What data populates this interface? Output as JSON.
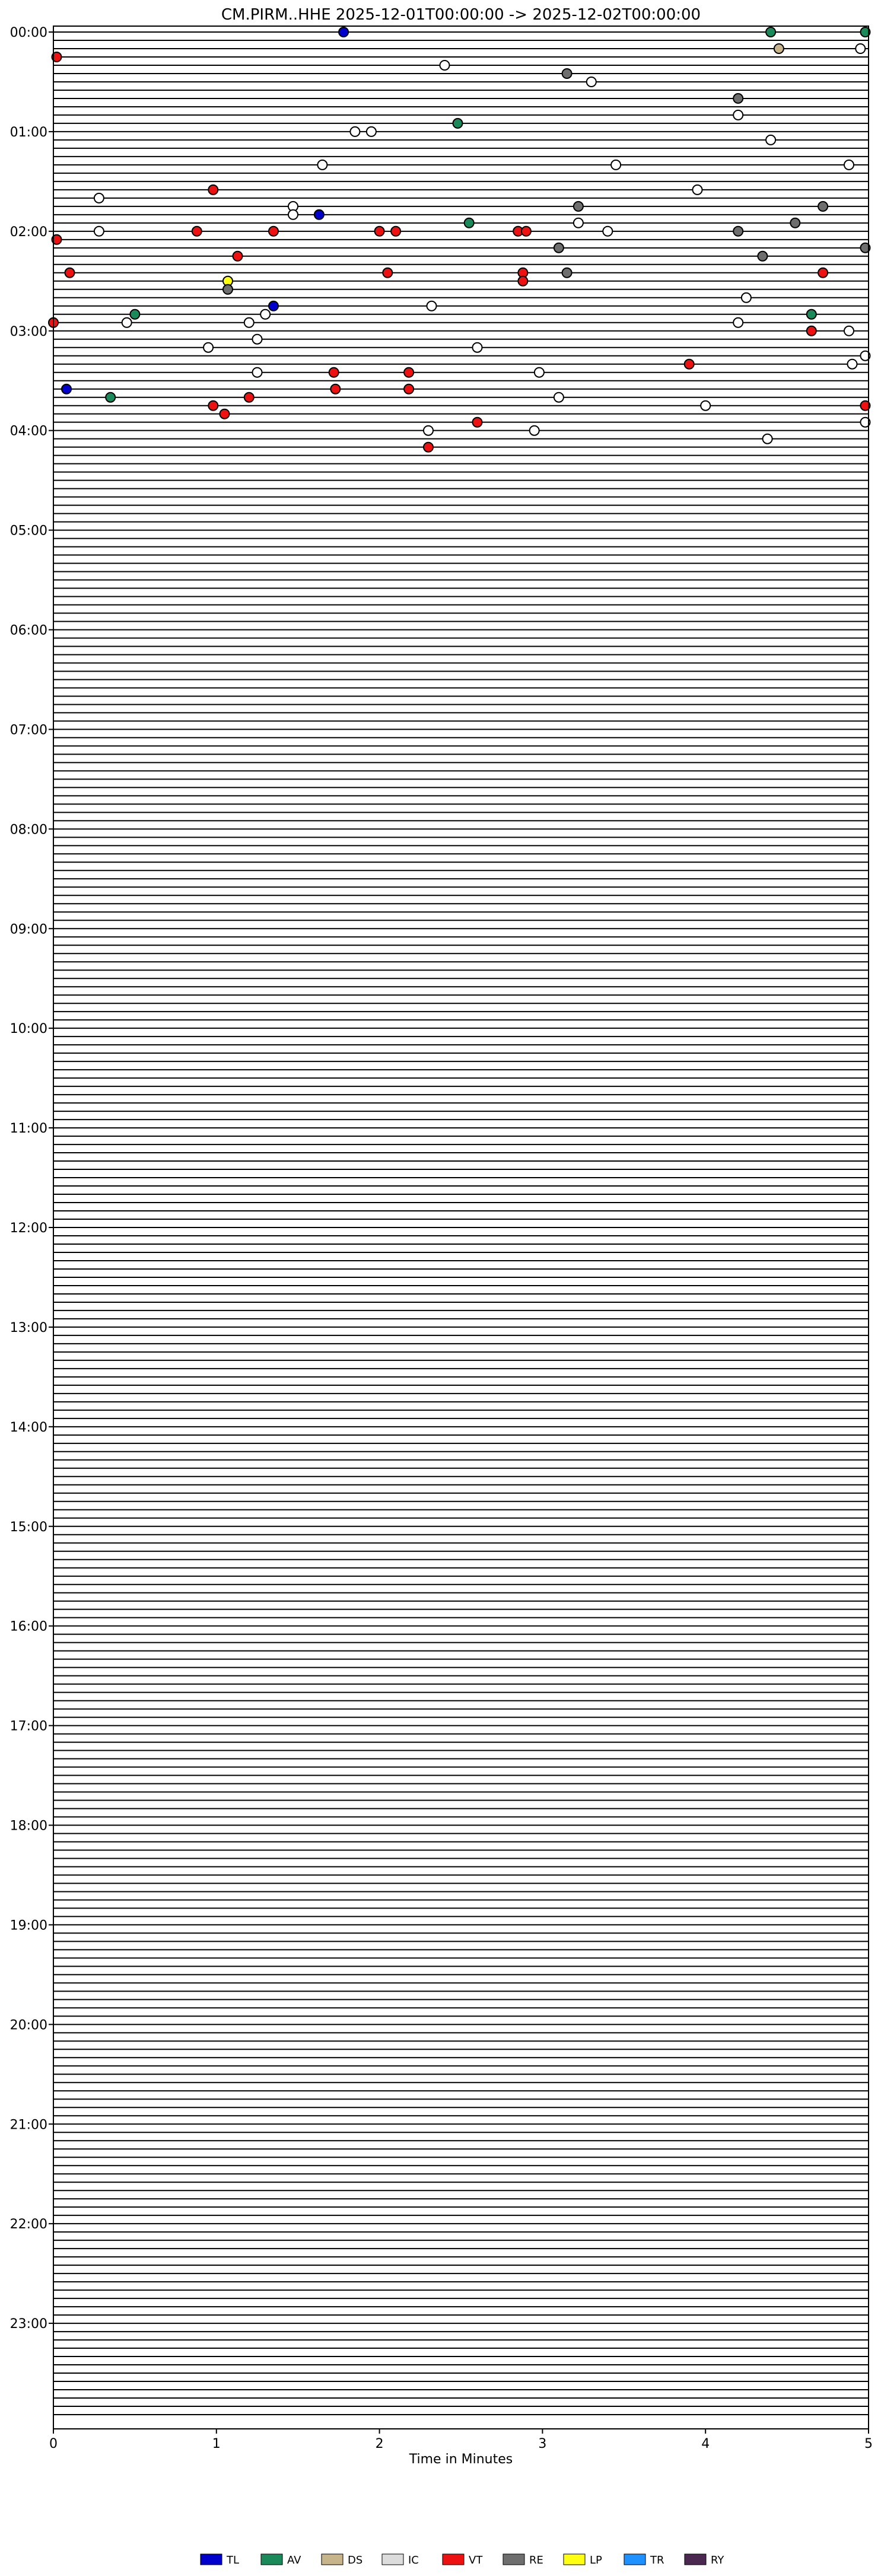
{
  "chart_data": {
    "type": "scatter",
    "title": "CM.PIRM..HHE  2025-12-01T00:00:00 -> 2025-12-02T00:00:00",
    "xlabel": "Time in Minutes",
    "ylabel": "",
    "xlim": [
      0,
      5
    ],
    "x_ticks": [
      "0",
      "1",
      "2",
      "3",
      "4",
      "5"
    ],
    "y_ticks": [
      "00:00",
      "01:00",
      "02:00",
      "03:00",
      "04:00",
      "05:00",
      "06:00",
      "07:00",
      "08:00",
      "09:00",
      "10:00",
      "11:00",
      "12:00",
      "13:00",
      "14:00",
      "15:00",
      "16:00",
      "17:00",
      "18:00",
      "19:00",
      "20:00",
      "21:00",
      "22:00",
      "23:00"
    ],
    "rows_per_hour": 12,
    "legend_position": "bottom",
    "legend": [
      {
        "code": "TL",
        "color": "#0000cc"
      },
      {
        "code": "AV",
        "color": "#1a8a5a"
      },
      {
        "code": "DS",
        "color": "#c8b48a"
      },
      {
        "code": "IC",
        "color": "#dcdcdc"
      },
      {
        "code": "VT",
        "color": "#ee1111"
      },
      {
        "code": "RE",
        "color": "#6e6e6e"
      },
      {
        "code": "LP",
        "color": "#ffff11"
      },
      {
        "code": "TR",
        "color": "#1e90ff"
      },
      {
        "code": "RY",
        "color": "#4a2850"
      }
    ],
    "colors": {
      "unclassified": "#ffffff",
      "trace": "#000000"
    },
    "events": [
      {
        "time": "00:00",
        "minute": 1.78,
        "class": "TL"
      },
      {
        "time": "00:00",
        "minute": 4.4,
        "class": "AV"
      },
      {
        "time": "00:00",
        "minute": 4.98,
        "class": "AV"
      },
      {
        "time": "00:10",
        "minute": 4.45,
        "class": "DS"
      },
      {
        "time": "00:10",
        "minute": 4.95,
        "class": null
      },
      {
        "time": "00:15",
        "minute": 0.02,
        "class": "VT"
      },
      {
        "time": "00:20",
        "minute": 2.4,
        "class": null
      },
      {
        "time": "00:25",
        "minute": 3.15,
        "class": "RE"
      },
      {
        "time": "00:30",
        "minute": 3.3,
        "class": null
      },
      {
        "time": "00:40",
        "minute": 4.2,
        "class": "RE"
      },
      {
        "time": "00:50",
        "minute": 4.2,
        "class": null
      },
      {
        "time": "00:55",
        "minute": 2.48,
        "class": "AV"
      },
      {
        "time": "01:00",
        "minute": 1.85,
        "class": null
      },
      {
        "time": "01:00",
        "minute": 1.95,
        "class": null
      },
      {
        "time": "01:05",
        "minute": 4.4,
        "class": null
      },
      {
        "time": "01:20",
        "minute": 1.65,
        "class": null
      },
      {
        "time": "01:20",
        "minute": 3.45,
        "class": null
      },
      {
        "time": "01:20",
        "minute": 4.88,
        "class": null
      },
      {
        "time": "01:35",
        "minute": 0.98,
        "class": "VT"
      },
      {
        "time": "01:35",
        "minute": 3.95,
        "class": null
      },
      {
        "time": "01:40",
        "minute": 0.28,
        "class": null
      },
      {
        "time": "01:45",
        "minute": 1.47,
        "class": null
      },
      {
        "time": "01:45",
        "minute": 3.22,
        "class": "RE"
      },
      {
        "time": "01:45",
        "minute": 4.72,
        "class": "RE"
      },
      {
        "time": "01:50",
        "minute": 1.63,
        "class": "TL"
      },
      {
        "time": "01:50",
        "minute": 1.47,
        "class": null
      },
      {
        "time": "01:55",
        "minute": 2.55,
        "class": "AV"
      },
      {
        "time": "01:55",
        "minute": 3.22,
        "class": null
      },
      {
        "time": "01:55",
        "minute": 4.55,
        "class": "RE"
      },
      {
        "time": "02:00",
        "minute": 0.28,
        "class": null
      },
      {
        "time": "02:00",
        "minute": 0.88,
        "class": "VT"
      },
      {
        "time": "02:00",
        "minute": 1.35,
        "class": "VT"
      },
      {
        "time": "02:00",
        "minute": 2.0,
        "class": "VT"
      },
      {
        "time": "02:00",
        "minute": 2.1,
        "class": "VT"
      },
      {
        "time": "02:00",
        "minute": 2.85,
        "class": "VT"
      },
      {
        "time": "02:00",
        "minute": 2.9,
        "class": "VT"
      },
      {
        "time": "02:00",
        "minute": 3.4,
        "class": null
      },
      {
        "time": "02:00",
        "minute": 4.2,
        "class": "RE"
      },
      {
        "time": "02:05",
        "minute": 0.02,
        "class": "VT"
      },
      {
        "time": "02:10",
        "minute": 3.1,
        "class": "RE"
      },
      {
        "time": "02:10",
        "minute": 4.98,
        "class": "RE"
      },
      {
        "time": "02:15",
        "minute": 1.13,
        "class": "VT"
      },
      {
        "time": "02:15",
        "minute": 4.35,
        "class": "RE"
      },
      {
        "time": "02:25",
        "minute": 0.1,
        "class": "VT"
      },
      {
        "time": "02:25",
        "minute": 2.05,
        "class": "VT"
      },
      {
        "time": "02:25",
        "minute": 2.88,
        "class": "VT"
      },
      {
        "time": "02:25",
        "minute": 3.15,
        "class": "RE"
      },
      {
        "time": "02:25",
        "minute": 4.72,
        "class": "VT"
      },
      {
        "time": "02:30",
        "minute": 1.07,
        "class": "LP"
      },
      {
        "time": "02:30",
        "minute": 2.88,
        "class": "VT"
      },
      {
        "time": "02:35",
        "minute": 1.07,
        "class": "RE"
      },
      {
        "time": "02:40",
        "minute": 4.25,
        "class": null
      },
      {
        "time": "02:45",
        "minute": 1.35,
        "class": "TL"
      },
      {
        "time": "02:45",
        "minute": 2.32,
        "class": null
      },
      {
        "time": "02:50",
        "minute": 0.5,
        "class": "AV"
      },
      {
        "time": "02:50",
        "minute": 1.3,
        "class": null
      },
      {
        "time": "02:50",
        "minute": 4.65,
        "class": "AV"
      },
      {
        "time": "02:55",
        "minute": 0.0,
        "class": "VT"
      },
      {
        "time": "02:55",
        "minute": 0.45,
        "class": null
      },
      {
        "time": "02:55",
        "minute": 1.2,
        "class": null
      },
      {
        "time": "02:55",
        "minute": 4.2,
        "class": null
      },
      {
        "time": "03:00",
        "minute": 4.65,
        "class": "VT"
      },
      {
        "time": "03:00",
        "minute": 4.88,
        "class": null
      },
      {
        "time": "03:05",
        "minute": 1.25,
        "class": null
      },
      {
        "time": "03:10",
        "minute": 0.95,
        "class": null
      },
      {
        "time": "03:10",
        "minute": 2.6,
        "class": null
      },
      {
        "time": "03:15",
        "minute": 4.98,
        "class": null
      },
      {
        "time": "03:20",
        "minute": 3.9,
        "class": "VT"
      },
      {
        "time": "03:20",
        "minute": 4.9,
        "class": null
      },
      {
        "time": "03:25",
        "minute": 1.25,
        "class": null
      },
      {
        "time": "03:25",
        "minute": 1.72,
        "class": "VT"
      },
      {
        "time": "03:25",
        "minute": 2.18,
        "class": "VT"
      },
      {
        "time": "03:25",
        "minute": 2.98,
        "class": null
      },
      {
        "time": "03:35",
        "minute": 0.08,
        "class": "TL"
      },
      {
        "time": "03:35",
        "minute": 1.73,
        "class": "VT"
      },
      {
        "time": "03:35",
        "minute": 2.18,
        "class": "VT"
      },
      {
        "time": "03:40",
        "minute": 0.35,
        "class": "AV"
      },
      {
        "time": "03:40",
        "minute": 1.2,
        "class": "VT"
      },
      {
        "time": "03:40",
        "minute": 3.1,
        "class": null
      },
      {
        "time": "03:45",
        "minute": 0.98,
        "class": "VT"
      },
      {
        "time": "03:45",
        "minute": 4.0,
        "class": null
      },
      {
        "time": "03:45",
        "minute": 4.98,
        "class": "VT"
      },
      {
        "time": "03:50",
        "minute": 1.05,
        "class": "VT"
      },
      {
        "time": "03:55",
        "minute": 2.6,
        "class": "VT"
      },
      {
        "time": "03:55",
        "minute": 4.98,
        "class": null
      },
      {
        "time": "04:00",
        "minute": 2.3,
        "class": null
      },
      {
        "time": "04:00",
        "minute": 2.95,
        "class": null
      },
      {
        "time": "04:05",
        "minute": 4.38,
        "class": null
      },
      {
        "time": "04:10",
        "minute": 2.3,
        "class": "VT"
      }
    ]
  }
}
